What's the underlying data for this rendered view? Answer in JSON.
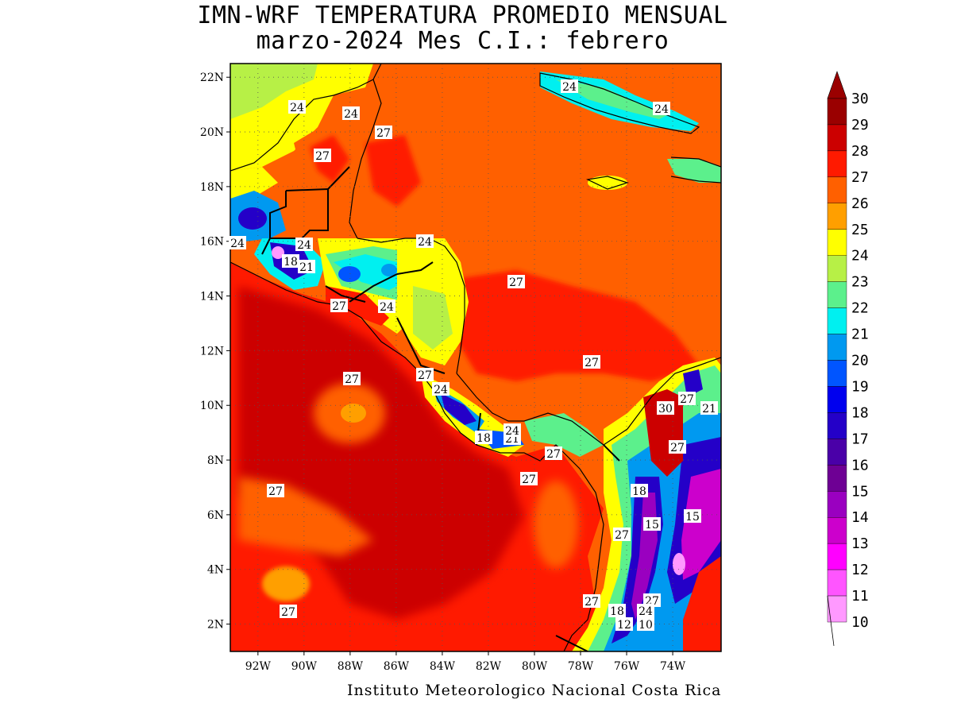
{
  "title_line1": "IMN-WRF  TEMPERATURA PROMEDIO MENSUAL",
  "title_line2": "marzo-2024 Mes C.I.: febrero",
  "credit": "Instituto Meteorologico Nacional Costa Rica",
  "axes": {
    "lon_ticks": [
      "92W",
      "90W",
      "88W",
      "86W",
      "84W",
      "82W",
      "80W",
      "78W",
      "76W",
      "74W"
    ],
    "lat_ticks": [
      "22N",
      "20N",
      "18N",
      "16N",
      "14N",
      "12N",
      "10N",
      "8N",
      "6N",
      "4N",
      "2N"
    ],
    "lon_range": [
      -93.2,
      -71.9
    ],
    "lat_range": [
      1.0,
      22.5
    ]
  },
  "colorbar": {
    "unit_labels": [
      "30",
      "29",
      "28",
      "27",
      "26",
      "25",
      "24",
      "23",
      "22",
      "21",
      "20",
      "19",
      "18",
      "17",
      "16",
      "15",
      "14",
      "13",
      "12",
      "11",
      "10"
    ],
    "colors": [
      "#9a0000",
      "#cc0000",
      "#ff1a00",
      "#ff6000",
      "#ff9f00",
      "#ffff00",
      "#b7f046",
      "#5cf08c",
      "#00f0f0",
      "#0099f0",
      "#0055ff",
      "#0000ee",
      "#2400c8",
      "#4a00a8",
      "#6e0094",
      "#9a00c0",
      "#cc00cc",
      "#ff00ff",
      "#ff55ff",
      "#ff99ff"
    ],
    "top_arrow_color": "#9a0000"
  },
  "contour_labels": [
    {
      "text": "24"
    },
    {
      "text": "24"
    },
    {
      "text": "27"
    },
    {
      "text": "27"
    },
    {
      "text": "24"
    },
    {
      "text": "24"
    },
    {
      "text": "24"
    },
    {
      "text": "24"
    },
    {
      "text": "18"
    },
    {
      "text": "21"
    },
    {
      "text": "24"
    },
    {
      "text": "27"
    },
    {
      "text": "24"
    },
    {
      "text": "27"
    },
    {
      "text": "27"
    },
    {
      "text": "27"
    },
    {
      "text": "24"
    },
    {
      "text": "27"
    },
    {
      "text": "30"
    },
    {
      "text": "21"
    },
    {
      "text": "27"
    },
    {
      "text": "18"
    },
    {
      "text": "21"
    },
    {
      "text": "27"
    },
    {
      "text": "27"
    },
    {
      "text": "27"
    },
    {
      "text": "27"
    },
    {
      "text": "18"
    },
    {
      "text": "27"
    },
    {
      "text": "15"
    },
    {
      "text": "15"
    },
    {
      "text": "27"
    },
    {
      "text": "27"
    },
    {
      "text": "27"
    },
    {
      "text": "18"
    },
    {
      "text": "24"
    },
    {
      "text": "12"
    },
    {
      "text": "10"
    },
    {
      "text": "24"
    }
  ]
}
